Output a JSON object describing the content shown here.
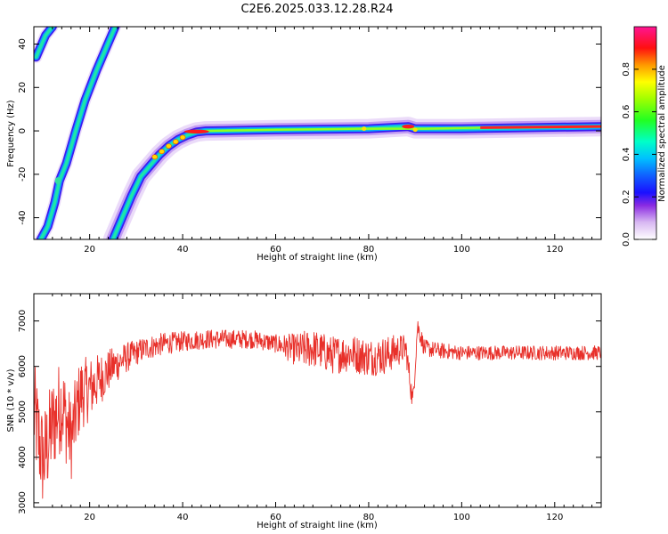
{
  "title": "C2E6.2025.033.12.28.R24",
  "chart_data": [
    {
      "type": "heatmap",
      "xlabel": "Height of straight line (km)",
      "ylabel": "Frequency (Hz)",
      "xlim": [
        8,
        130
      ],
      "ylim": [
        -50,
        48
      ],
      "xticks": [
        20,
        40,
        60,
        80,
        100,
        120
      ],
      "yticks": [
        -40,
        -20,
        0,
        20,
        40
      ],
      "colorbar": {
        "label": "Normalized spectral amplitude",
        "range": [
          0,
          1
        ],
        "ticks": [
          "0.0",
          "0.2",
          "0.4",
          "0.6",
          "0.8"
        ]
      },
      "ridges": [
        {
          "x": [
            8.5,
            10.5,
            12.0
          ],
          "y": [
            34,
            44,
            48
          ]
        },
        {
          "x": [
            9.5,
            11.0,
            12.5,
            13.5,
            15.0,
            17.0,
            19.0,
            21.5,
            23.5,
            25.5
          ],
          "y": [
            -50,
            -44,
            -33,
            -23,
            -15,
            0,
            14,
            28,
            38,
            48
          ]
        },
        {
          "x": [
            25.0,
            27.0,
            29.0,
            31.0,
            33.0,
            35.0,
            37.0,
            39.0,
            41.0,
            43.0,
            45.0,
            60.0,
            80.0,
            88.5,
            90.0,
            100.0,
            130.0
          ],
          "y": [
            -50,
            -40,
            -30,
            -21,
            -16,
            -11,
            -7,
            -4,
            -2,
            -0.5,
            0,
            0.5,
            1,
            2,
            1,
            1,
            2
          ]
        }
      ]
    },
    {
      "type": "line",
      "xlabel": "Height of straight line (km)",
      "ylabel": "SNR (10 * v/v)",
      "xlim": [
        8,
        130
      ],
      "ylim": [
        2900,
        7600
      ],
      "xticks": [
        20,
        40,
        60,
        80,
        100,
        120
      ],
      "yticks": [
        3000,
        4000,
        5000,
        6000,
        7000
      ],
      "line_color": "#e8302a",
      "trend": {
        "x": [
          8,
          10,
          12,
          14,
          16,
          18,
          20,
          22,
          25,
          28,
          32,
          36,
          40,
          45,
          50,
          55,
          60,
          65,
          68,
          72,
          76,
          80,
          84,
          86,
          88,
          89.5,
          90.5,
          92,
          95,
          100,
          110,
          120,
          130
        ],
        "y": [
          5000,
          3900,
          4700,
          5200,
          4400,
          5400,
          5500,
          5700,
          6000,
          6200,
          6400,
          6500,
          6550,
          6600,
          6600,
          6600,
          6500,
          6350,
          6400,
          6250,
          6300,
          6200,
          6250,
          6350,
          6400,
          5200,
          6900,
          6400,
          6350,
          6300,
          6300,
          6300,
          6300
        ]
      },
      "spread": {
        "x": [
          8,
          14,
          20,
          25,
          30,
          40,
          60,
          66,
          84,
          92,
          100,
          130
        ],
        "y": [
          1150,
          1050,
          700,
          420,
          280,
          220,
          200,
          420,
          420,
          190,
          160,
          160
        ]
      }
    }
  ]
}
